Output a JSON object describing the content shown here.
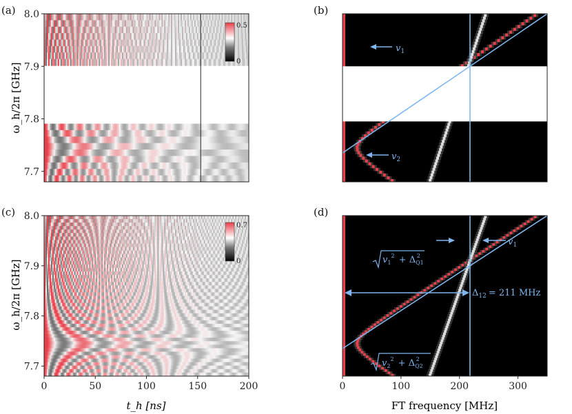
{
  "colors": {
    "accent_blue": "#7fb6ee",
    "signal_red": "#e8404a",
    "map_low": "#000000",
    "map_high": "#ffffff"
  },
  "chart_data": [
    {
      "panel_label": "(a)",
      "type": "heatmap",
      "xlabel": "",
      "ylabel": "ω_h/2π [GHz]",
      "x_ticks": [],
      "y_ticks": [
        "7.7",
        "7.8",
        "7.9",
        "8.0"
      ],
      "xlim": [
        0,
        200
      ],
      "ylim": [
        7.68,
        8.0
      ],
      "blank_band_ghz": [
        7.795,
        7.9
      ],
      "colorbar": {
        "min": "0",
        "max": "0.5"
      },
      "vertical_marker_x_ns": 153
    },
    {
      "panel_label": "(b)",
      "type": "heatmap",
      "xlabel": "",
      "ylabel": "",
      "x_ticks": [],
      "y_ticks": [],
      "xlim": [
        0,
        350
      ],
      "ylim": [
        7.68,
        8.0
      ],
      "blank_band_ghz": [
        7.795,
        7.9
      ],
      "vertical_line_mhz": 218,
      "diagonal_line": {
        "from": [
          0,
          7.735
        ],
        "to": [
          350,
          8.0
        ]
      },
      "annotations": [
        {
          "label": "v",
          "subscript": "1"
        },
        {
          "label": "v",
          "subscript": "2"
        }
      ]
    },
    {
      "panel_label": "(c)",
      "type": "heatmap",
      "xlabel": "t_h [ns]",
      "ylabel": "ω_h/2π [GHz]",
      "x_ticks": [
        "0",
        "50",
        "100",
        "150",
        "200"
      ],
      "y_ticks": [
        "7.7",
        "7.8",
        "7.9",
        "8.0"
      ],
      "xlim": [
        0,
        200
      ],
      "ylim": [
        7.68,
        8.0
      ],
      "colorbar": {
        "min": "0",
        "max": "0.7"
      }
    },
    {
      "panel_label": "(d)",
      "type": "heatmap",
      "xlabel": "FT frequency [MHz]",
      "ylabel": "",
      "x_ticks": [
        "0",
        "100",
        "200",
        "300"
      ],
      "y_ticks": [],
      "xlim": [
        0,
        350
      ],
      "ylim": [
        7.68,
        8.0
      ],
      "vertical_line_mhz": 218,
      "diagonal_line": {
        "from": [
          0,
          7.735
        ],
        "to": [
          350,
          8.0
        ]
      },
      "annotations": [
        {
          "label": "v",
          "subscript": "1"
        },
        {
          "label": "Δ",
          "subscript": "12",
          "value": "= 211 MHz"
        }
      ],
      "formula_labels": [
        {
          "v": "v",
          "v_sub": "1",
          "delta": "Δ",
          "delta_sub": "Q1",
          "exp": "2"
        },
        {
          "v": "v",
          "v_sub": "2",
          "delta": "Δ",
          "delta_sub": "Q2",
          "exp": "2"
        }
      ]
    }
  ]
}
